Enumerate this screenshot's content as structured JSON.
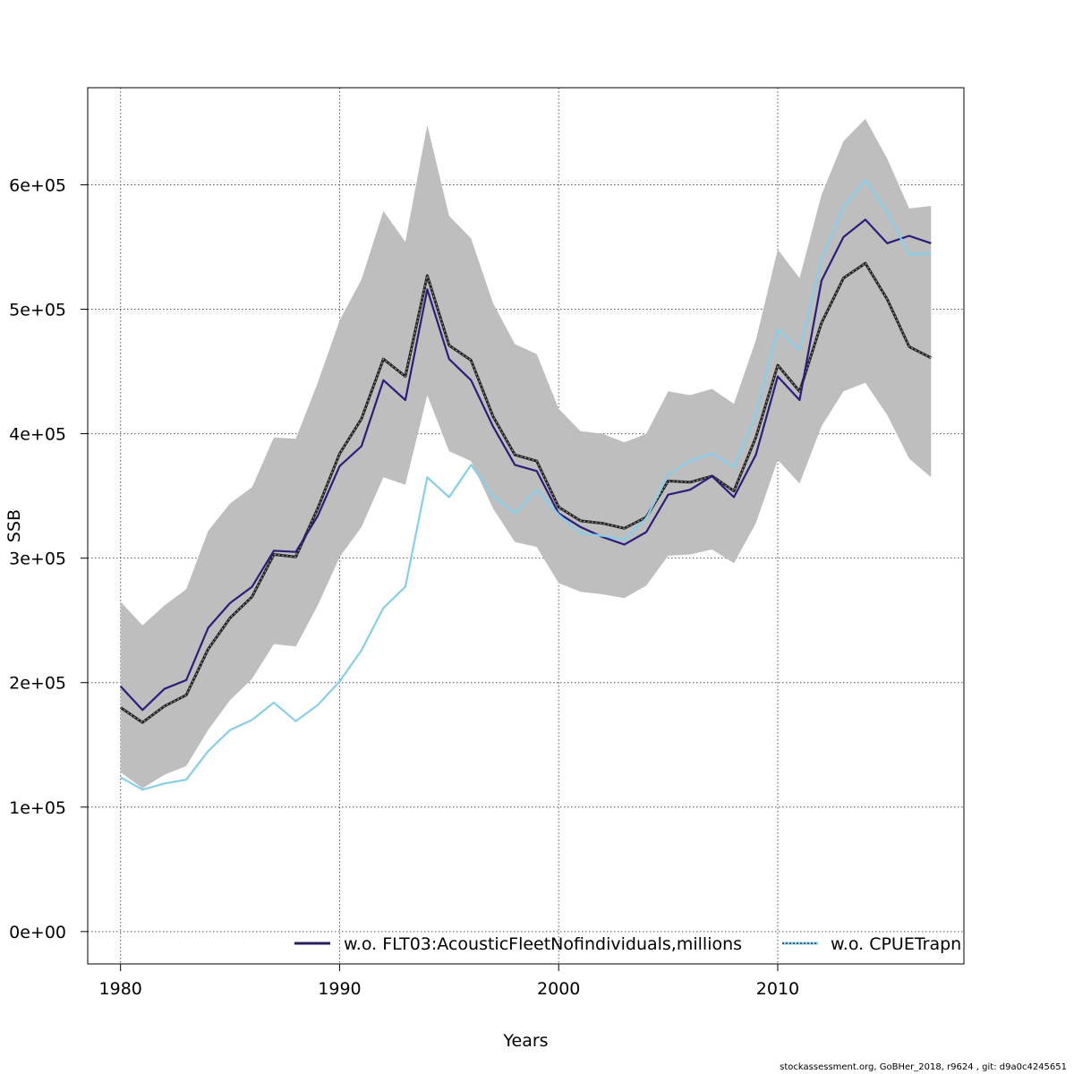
{
  "chart_data": {
    "type": "line",
    "xlabel": "Years",
    "ylabel": "SSB",
    "xlim": [
      1978.5,
      2018.5
    ],
    "ylim": [
      -26000,
      678000
    ],
    "x_ticks": [
      1980,
      1990,
      2000,
      2010
    ],
    "x_tick_labels": [
      "1980",
      "1990",
      "2000",
      "2010"
    ],
    "y_ticks": [
      0,
      100000,
      200000,
      300000,
      400000,
      500000,
      600000
    ],
    "y_tick_labels": [
      "0e+00",
      "1e+05",
      "2e+05",
      "3e+05",
      "4e+05",
      "5e+05",
      "6e+05"
    ],
    "grid": true,
    "legend_position": "bottom",
    "x": [
      1980,
      1981,
      1982,
      1983,
      1984,
      1985,
      1986,
      1987,
      1988,
      1989,
      1990,
      1991,
      1992,
      1993,
      1994,
      1995,
      1996,
      1997,
      1998,
      1999,
      2000,
      2001,
      2002,
      2003,
      2004,
      2005,
      2006,
      2007,
      2008,
      2009,
      2010,
      2011,
      2012,
      2013,
      2014,
      2015,
      2016,
      2017
    ],
    "confidence_band": {
      "color": "#bebebe",
      "upper": [
        265000,
        246000,
        262000,
        275000,
        322000,
        344000,
        357000,
        397000,
        396000,
        441000,
        491000,
        524000,
        579000,
        554000,
        648000,
        575000,
        557000,
        505000,
        472000,
        464000,
        420000,
        402000,
        400000,
        393000,
        400000,
        434000,
        431000,
        436000,
        424000,
        475000,
        548000,
        525000,
        592000,
        635000,
        653000,
        621000,
        581000,
        583000
      ],
      "lower": [
        128000,
        115000,
        126000,
        133000,
        162000,
        186000,
        203000,
        231000,
        229000,
        262000,
        301000,
        325000,
        365000,
        359000,
        431000,
        386000,
        378000,
        340000,
        313000,
        309000,
        280000,
        273000,
        271000,
        268000,
        278000,
        302000,
        303000,
        307000,
        296000,
        328000,
        379000,
        360000,
        406000,
        434000,
        441000,
        415000,
        380000,
        365000
      ]
    },
    "series": [
      {
        "role": "base",
        "color": "#222222",
        "values": [
          180000,
          168000,
          181000,
          190000,
          227000,
          252000,
          269000,
          303000,
          301000,
          340000,
          384000,
          412000,
          460000,
          446000,
          527000,
          471000,
          459000,
          414000,
          383000,
          378000,
          341000,
          330000,
          328000,
          324000,
          333000,
          362000,
          361000,
          366000,
          354000,
          397000,
          455000,
          434000,
          489000,
          525000,
          537000,
          508000,
          470000,
          461000
        ]
      },
      {
        "name": "w.o. FLT03:AcousticFleetNofindividuals,millions",
        "color": "#2b1e7a",
        "values": [
          197000,
          178000,
          195000,
          202000,
          244000,
          264000,
          277000,
          306000,
          305000,
          334000,
          374000,
          390000,
          443000,
          427000,
          516000,
          460000,
          443000,
          406000,
          375000,
          370000,
          336000,
          325000,
          317000,
          311000,
          321000,
          351000,
          355000,
          366000,
          349000,
          383000,
          446000,
          427000,
          523000,
          558000,
          572000,
          553000,
          559000,
          553000
        ]
      },
      {
        "name": "w.o. CPUETrapn",
        "color": "#87ceeb",
        "values": [
          124000,
          114000,
          119000,
          122000,
          145000,
          162000,
          170000,
          184000,
          169000,
          182000,
          201000,
          226000,
          260000,
          277000,
          365000,
          349000,
          375000,
          350000,
          336000,
          355000,
          335000,
          320000,
          318000,
          315000,
          332000,
          367000,
          378000,
          384000,
          373000,
          415000,
          484000,
          467000,
          540000,
          582000,
          604000,
          578000,
          544000,
          545000
        ]
      }
    ],
    "legend": [
      {
        "label": "w.o. FLT03:AcousticFleetNofindividuals,millions",
        "line_color": "#2b1e7a"
      },
      {
        "label": "w.o. CPUETrapn",
        "line_color": "#87ceeb"
      }
    ]
  },
  "footer": "stockassessment.org, GoBHer_2018, r9624 , git: d9a0c4245651"
}
